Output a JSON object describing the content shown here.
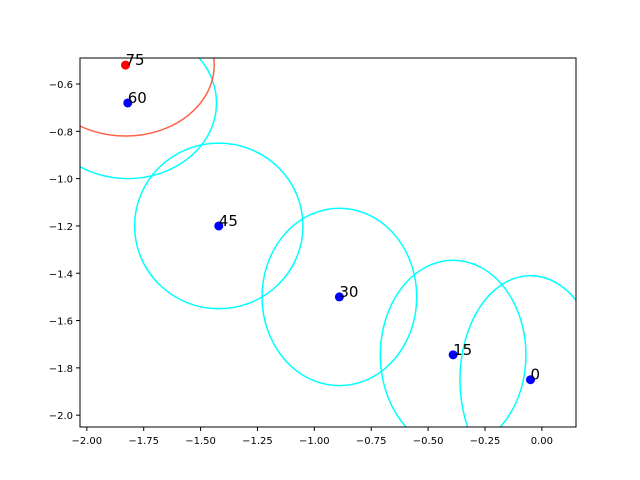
{
  "chart_data": {
    "type": "scatter",
    "title": "",
    "xlabel": "",
    "ylabel": "",
    "xlim": [
      -2.03,
      0.15
    ],
    "ylim": [
      -2.05,
      -0.49
    ],
    "xticks": [
      -2.0,
      -1.75,
      -1.5,
      -1.25,
      -1.0,
      -0.75,
      -0.5,
      -0.25,
      0.0
    ],
    "xtick_labels": [
      "−2.00",
      "−1.75",
      "−1.50",
      "−1.25",
      "−1.00",
      "−0.75",
      "−0.50",
      "−0.25",
      "0.00"
    ],
    "yticks": [
      -0.6,
      -0.8,
      -1.0,
      -1.2,
      -1.4,
      -1.6,
      -1.8,
      -2.0
    ],
    "ytick_labels": [
      "−0.6",
      "−0.8",
      "−1.0",
      "−1.2",
      "−1.4",
      "−1.6",
      "−1.8",
      "−2.0"
    ],
    "grid": false,
    "points": [
      {
        "label": "0",
        "x": -0.05,
        "y": -1.85,
        "color": "#0000ff",
        "circle_color": "#00ffff",
        "rx": 0.31,
        "ry": 0.44
      },
      {
        "label": "15",
        "x": -0.39,
        "y": -1.745,
        "color": "#0000ff",
        "circle_color": "#00ffff",
        "rx": 0.32,
        "ry": 0.4
      },
      {
        "label": "30",
        "x": -0.89,
        "y": -1.5,
        "color": "#0000ff",
        "circle_color": "#00ffff",
        "rx": 0.34,
        "ry": 0.375
      },
      {
        "label": "45",
        "x": -1.42,
        "y": -1.2,
        "color": "#0000ff",
        "circle_color": "#00ffff",
        "rx": 0.37,
        "ry": 0.35
      },
      {
        "label": "60",
        "x": -1.82,
        "y": -0.68,
        "color": "#0000ff",
        "circle_color": "#00ffff",
        "rx": 0.39,
        "ry": 0.32
      },
      {
        "label": "75",
        "x": -1.83,
        "y": -0.52,
        "color": "#ff0000",
        "circle_color": "#ff6347",
        "rx": 0.39,
        "ry": 0.3
      }
    ]
  }
}
